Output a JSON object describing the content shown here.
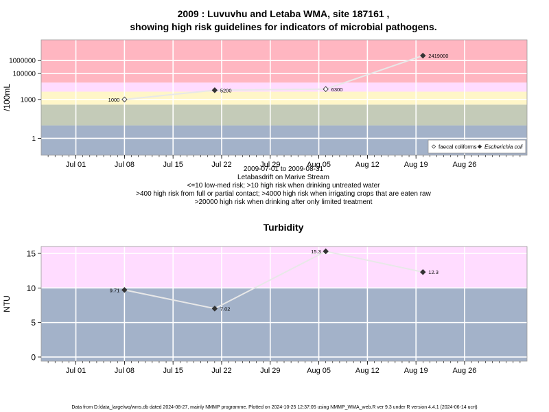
{
  "title_line1": "2009 : Luvuvhu and Letaba WMA, site 187161 ,",
  "title_line2": "showing high risk guidelines for indicators of microbial pathogens.",
  "info_lines": [
    "2009-07-01 to 2009-08-31",
    "Letabasdrift on Marive Stream",
    "<=10 low-med risk; >10 high risk when drinking untreated water",
    ">400 high risk from full or partial contact; >4000 high risk when irrigating crops that are eaten raw",
    ">20000 high risk when drinking after only limited treatment"
  ],
  "footer": "Data from D:/data_large/wq/wms.db dated 2024-08-27, mainly NMMP programme. Plotted on 2024-10-25 12:37:05 using NMMP_WMA_web.R ver 9.3 under R version 4.4.1 (2024-06-14 ucrt)",
  "colors": {
    "red": "#ffb6c1",
    "pink": "#ffdcff",
    "yellow": "#fff6c8",
    "sage": "#c4cbb8",
    "blue": "#a3b2c9",
    "line": "#e8e8e8",
    "point": "#333333"
  },
  "chart_data": [
    {
      "type": "line",
      "scale": "log10",
      "xlabel": "",
      "ylabel": "/100mL",
      "xlim": [
        "2009-06-26",
        "2009-09-04"
      ],
      "ylim": [
        0.05,
        40000000
      ],
      "x_ticks": [
        {
          "date": "2009-07-01",
          "label": "Jul 01"
        },
        {
          "date": "2009-07-08",
          "label": "Jul 08"
        },
        {
          "date": "2009-07-15",
          "label": "Jul 15"
        },
        {
          "date": "2009-07-22",
          "label": "Jul 22"
        },
        {
          "date": "2009-07-29",
          "label": "Jul 29"
        },
        {
          "date": "2009-08-05",
          "label": "Aug 05"
        },
        {
          "date": "2009-08-12",
          "label": "Aug 12"
        },
        {
          "date": "2009-08-19",
          "label": "Aug 19"
        },
        {
          "date": "2009-08-26",
          "label": "Aug 26"
        }
      ],
      "y_ticks": [
        {
          "value": 1,
          "label": "1"
        },
        {
          "value": 1000,
          "label": "1000"
        },
        {
          "value": 100000,
          "label": "100000"
        },
        {
          "value": 1000000,
          "label": "1000000"
        }
      ],
      "bands": [
        {
          "from": 0.05,
          "to": 10,
          "color": "blue"
        },
        {
          "from": 10,
          "to": 400,
          "color": "sage"
        },
        {
          "from": 400,
          "to": 4000,
          "color": "yellow"
        },
        {
          "from": 4000,
          "to": 20000,
          "color": "pink"
        },
        {
          "from": 20000,
          "to": 40000000,
          "color": "red"
        }
      ],
      "series": [
        {
          "name": "Escherichia coli",
          "marker": "filled-diamond",
          "points": [
            {
              "x": "2009-07-21",
              "y": 5200,
              "label": "5200"
            },
            {
              "x": "2009-08-20",
              "y": 2419000,
              "label": "2419000"
            }
          ]
        },
        {
          "name": "faecal coliforms",
          "marker": "open-diamond",
          "points": [
            {
              "x": "2009-07-08",
              "y": 1000,
              "label": "1000"
            },
            {
              "x": "2009-08-06",
              "y": 6300,
              "label": "6300"
            }
          ]
        }
      ],
      "line_order": [
        {
          "x": "2009-07-08",
          "y": 1000
        },
        {
          "x": "2009-07-21",
          "y": 5200
        },
        {
          "x": "2009-08-06",
          "y": 6300
        },
        {
          "x": "2009-08-20",
          "y": 2419000
        }
      ],
      "legend": "bottom-right",
      "grid": true
    },
    {
      "type": "line",
      "scale": "linear",
      "title": "Turbidity",
      "xlabel": "",
      "ylabel": "NTU",
      "xlim": [
        "2009-06-26",
        "2009-09-04"
      ],
      "ylim": [
        -0.6,
        16
      ],
      "x_ticks": [
        {
          "date": "2009-07-01",
          "label": "Jul 01"
        },
        {
          "date": "2009-07-08",
          "label": "Jul 08"
        },
        {
          "date": "2009-07-15",
          "label": "Jul 15"
        },
        {
          "date": "2009-07-22",
          "label": "Jul 22"
        },
        {
          "date": "2009-07-29",
          "label": "Jul 29"
        },
        {
          "date": "2009-08-05",
          "label": "Aug 05"
        },
        {
          "date": "2009-08-12",
          "label": "Aug 12"
        },
        {
          "date": "2009-08-19",
          "label": "Aug 19"
        },
        {
          "date": "2009-08-26",
          "label": "Aug 26"
        }
      ],
      "y_ticks": [
        {
          "value": 0,
          "label": "0"
        },
        {
          "value": 5,
          "label": "5"
        },
        {
          "value": 10,
          "label": "10"
        },
        {
          "value": 15,
          "label": "15"
        }
      ],
      "bands": [
        {
          "from": -0.6,
          "to": 10,
          "color": "blue"
        },
        {
          "from": 10,
          "to": 16,
          "color": "pink"
        }
      ],
      "series": [
        {
          "marker": "filled-diamond",
          "points": [
            {
              "x": "2009-07-08",
              "y": 9.71,
              "label": "9.71"
            },
            {
              "x": "2009-07-21",
              "y": 7.02,
              "label": "7.02"
            },
            {
              "x": "2009-08-06",
              "y": 15.3,
              "label": "15.3"
            },
            {
              "x": "2009-08-20",
              "y": 12.3,
              "label": "12.3"
            }
          ]
        }
      ],
      "grid": true
    }
  ]
}
